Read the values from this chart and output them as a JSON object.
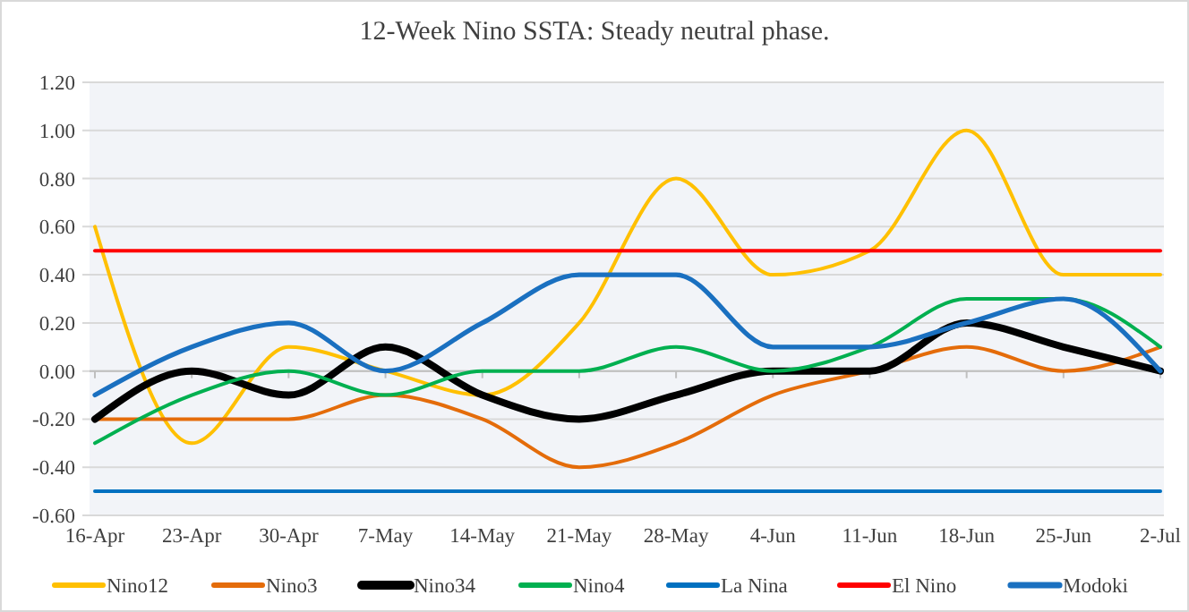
{
  "chart_data": {
    "type": "line",
    "title": "12-Week Nino SSTA: Steady neutral phase.",
    "categories": [
      "16-Apr",
      "23-Apr",
      "30-Apr",
      "7-May",
      "14-May",
      "21-May",
      "28-May",
      "4-Jun",
      "11-Jun",
      "18-Jun",
      "25-Jun",
      "2-Jul"
    ],
    "series": [
      {
        "name": "Nino12",
        "color": "#ffc000",
        "values": [
          0.6,
          -0.3,
          0.1,
          0.0,
          -0.1,
          0.2,
          0.8,
          0.4,
          0.5,
          1.0,
          0.4,
          0.4
        ]
      },
      {
        "name": "Nino3",
        "color": "#e46c0a",
        "values": [
          -0.2,
          -0.2,
          -0.2,
          -0.1,
          -0.2,
          -0.4,
          -0.3,
          -0.1,
          0.0,
          0.1,
          0.0,
          0.1
        ]
      },
      {
        "name": "Nino34",
        "color": "#000000",
        "values": [
          -0.2,
          0.0,
          -0.1,
          0.1,
          -0.1,
          -0.2,
          -0.1,
          0.0,
          0.0,
          0.2,
          0.1,
          0.0
        ]
      },
      {
        "name": "Nino4",
        "color": "#00b050",
        "values": [
          -0.3,
          -0.1,
          0.0,
          -0.1,
          0.0,
          0.0,
          0.1,
          0.0,
          0.1,
          0.3,
          0.3,
          0.1
        ]
      },
      {
        "name": "La Nina",
        "color": "#0070c0",
        "values": [
          -0.5,
          -0.5,
          -0.5,
          -0.5,
          -0.5,
          -0.5,
          -0.5,
          -0.5,
          -0.5,
          -0.5,
          -0.5,
          -0.5
        ]
      },
      {
        "name": "El Nino",
        "color": "#ff0000",
        "values": [
          0.5,
          0.5,
          0.5,
          0.5,
          0.5,
          0.5,
          0.5,
          0.5,
          0.5,
          0.5,
          0.5,
          0.5
        ]
      },
      {
        "name": "Modoki",
        "color": "#1a70c0",
        "values": [
          -0.1,
          0.1,
          0.2,
          0.0,
          0.2,
          0.4,
          0.4,
          0.1,
          0.1,
          0.2,
          0.3,
          0.0
        ]
      }
    ],
    "ylim": [
      -0.6,
      1.2
    ],
    "yticks": [
      {
        "value": -0.6,
        "label": "-0.60"
      },
      {
        "value": -0.4,
        "label": "-0.40"
      },
      {
        "value": -0.2,
        "label": "-0.20"
      },
      {
        "value": 0,
        "label": "0.00"
      },
      {
        "value": 0.2,
        "label": "0.20"
      },
      {
        "value": 0.4,
        "label": "0.40"
      },
      {
        "value": 0.6,
        "label": "0.60"
      },
      {
        "value": 0.8,
        "label": "0.80"
      },
      {
        "value": 1.0,
        "label": "1.00"
      },
      {
        "value": 1.2,
        "label": "1.20"
      }
    ],
    "grid": "y",
    "legend": "bottom",
    "marker": "none",
    "line_style": "solid"
  }
}
